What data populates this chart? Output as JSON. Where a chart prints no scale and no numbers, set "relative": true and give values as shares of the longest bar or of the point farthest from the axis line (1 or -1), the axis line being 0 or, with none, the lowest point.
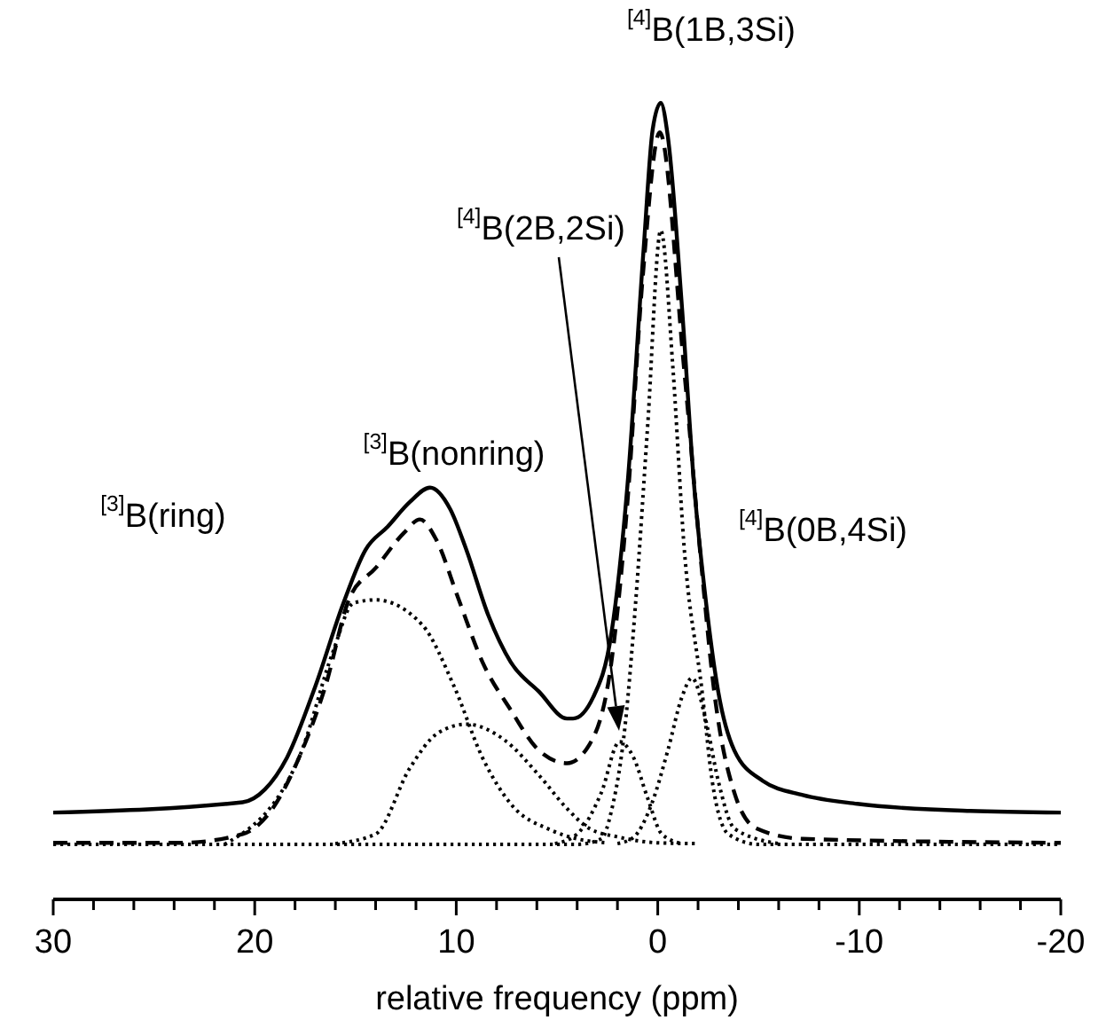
{
  "chart_data": {
    "type": "line",
    "relative": true,
    "xlabel": "relative frequency (ppm)",
    "xlim": [
      30,
      -20
    ],
    "xticks": [
      30,
      {
        "value": 28,
        "label": null
      },
      {
        "value": 26,
        "label": null
      },
      {
        "value": 24,
        "label": null
      },
      {
        "value": 22,
        "label": null
      },
      20,
      {
        "value": 18,
        "label": null
      },
      {
        "value": 16,
        "label": null
      },
      {
        "value": 14,
        "label": null
      },
      {
        "value": 12,
        "label": null
      },
      10,
      {
        "value": 8,
        "label": null
      },
      {
        "value": 6,
        "label": null
      },
      {
        "value": 4,
        "label": null
      },
      {
        "value": 2,
        "label": null
      },
      0,
      {
        "value": -2,
        "label": null
      },
      {
        "value": -4,
        "label": null
      },
      {
        "value": -6,
        "label": null
      },
      {
        "value": -8,
        "label": null
      },
      -10,
      {
        "value": -12,
        "label": null
      },
      {
        "value": -14,
        "label": null
      },
      {
        "value": -16,
        "label": null
      },
      {
        "value": -18,
        "label": null
      },
      -20
    ],
    "tick_labels": "x",
    "series": [
      {
        "color": "#000000",
        "line_style": "solid",
        "x": [
          30,
          20.6,
          19.5,
          18.4,
          17.0,
          15.6,
          14.5,
          13.4,
          12.3,
          11.3,
          10.3,
          9.5,
          8.4,
          7.3,
          5.9,
          4.5,
          4.2,
          3.2,
          2.3,
          1.5,
          0.7,
          0.25,
          -0.15,
          -0.5,
          -1.2,
          -1.8,
          -2.4,
          -3.0,
          -3.8,
          -5.2,
          -7.2,
          -9.9,
          -15.5,
          -20
        ],
        "values": [
          0.109,
          0.122,
          0.138,
          0.178,
          0.267,
          0.372,
          0.439,
          0.468,
          0.499,
          0.517,
          0.49,
          0.439,
          0.356,
          0.298,
          0.261,
          0.227,
          0.227,
          0.254,
          0.334,
          0.521,
          0.817,
          0.967,
          1.0,
          0.958,
          0.744,
          0.521,
          0.372,
          0.261,
          0.187,
          0.149,
          0.131,
          0.12,
          0.111,
          0.109
        ]
      },
      {
        "color": "#000000",
        "line_style": "dashed",
        "x": [
          30,
          23.7,
          20.6,
          19.2,
          17.8,
          16.5,
          15.3,
          14.0,
          12.6,
          11.8,
          11.0,
          9.9,
          8.7,
          7.3,
          5.9,
          4.5,
          3.4,
          2.3,
          1.5,
          0.75,
          -0.1,
          -1.3,
          -2.2,
          -2.8,
          -3.8,
          -4.9,
          -7.2,
          -20
        ],
        "values": [
          0.071,
          0.071,
          0.082,
          0.111,
          0.178,
          0.267,
          0.378,
          0.416,
          0.46,
          0.477,
          0.452,
          0.378,
          0.298,
          0.238,
          0.187,
          0.171,
          0.194,
          0.298,
          0.5,
          0.78,
          0.963,
          0.668,
          0.41,
          0.261,
          0.134,
          0.089,
          0.076,
          0.071
        ]
      },
      {
        "color": "#000000",
        "line_style": "dotted",
        "x": [
          21.5,
          17.8,
          16.1,
          15.1,
          14.0,
          11.7,
          10.1,
          8.7,
          7.3,
          5.3,
          4.0,
          2.5
        ],
        "values": [
          0.069,
          0.178,
          0.312,
          0.372,
          0.376,
          0.345,
          0.267,
          0.178,
          0.12,
          0.087,
          0.076,
          0.071
        ]
      },
      {
        "color": "#000000",
        "line_style": "dotted",
        "x": [
          16,
          14.0,
          12.3,
          10.9,
          9.5,
          7.6,
          5.9,
          4.5,
          3.4,
          1.9,
          0,
          -2
        ],
        "values": [
          0.07,
          0.082,
          0.165,
          0.209,
          0.22,
          0.2,
          0.156,
          0.114,
          0.089,
          0.078,
          0.071,
          0.07
        ]
      },
      {
        "color": "#000000",
        "line_style": "dotted",
        "x": [
          5.1,
          4.0,
          2.8,
          1.9,
          1.2,
          0.5,
          -0.2,
          -1.2
        ],
        "values": [
          0.07,
          0.082,
          0.134,
          0.198,
          0.178,
          0.127,
          0.082,
          0.07
        ]
      },
      {
        "color": "#000000",
        "line_style": "dotted",
        "x": [
          30,
          4,
          2.8,
          2.3,
          1.6,
          1.1,
          0.5,
          -0.15,
          -0.75,
          -1.3,
          -2.2,
          -2.7,
          -3.5,
          -5,
          -20
        ],
        "values": [
          0.069,
          0.069,
          0.076,
          0.111,
          0.223,
          0.372,
          0.595,
          0.84,
          0.668,
          0.445,
          0.261,
          0.149,
          0.082,
          0.069,
          0.069
        ]
      },
      {
        "color": "#000000",
        "line_style": "dotted",
        "x": [
          2,
          1.2,
          0.3,
          -0.5,
          -1.2,
          -1.7,
          -2.4,
          -3.0,
          -3.8,
          -6
        ],
        "values": [
          0.07,
          0.078,
          0.12,
          0.187,
          0.254,
          0.278,
          0.223,
          0.149,
          0.089,
          0.07
        ]
      }
    ],
    "annotations": [
      "$^{[3]}$B(ring)",
      "$^{[3]}$B(nonring)",
      "$^{[4]}$B(2B,2Si)",
      "$^{[4]}$B(1B,3Si)",
      "$^{[4]}$B(0B,4Si)"
    ]
  }
}
